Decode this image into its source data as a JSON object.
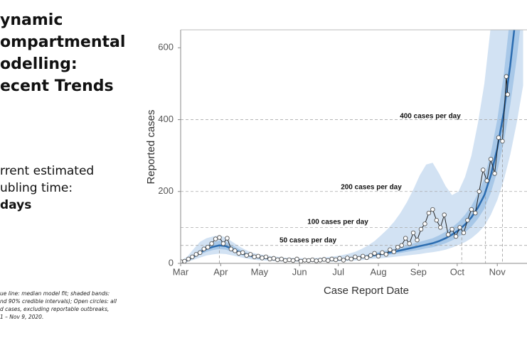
{
  "slide": {
    "title_lines": [
      "ynamic",
      "ompartmental",
      "odelling:",
      "ecent Trends"
    ],
    "body_lines": [
      "rrent estimated",
      "ubling time:"
    ],
    "body_bold": "days",
    "footnote_lines": [
      "ue line: median model fit; shaded bands:",
      "nd 90% credible intervals); Open circles: all",
      "d cases, excluding reportable outbreaks,",
      "1 – Nov 9, 2020."
    ]
  },
  "chart_data": {
    "type": "line",
    "x_label": "Case Report Date",
    "y_label": "Reported cases",
    "xlim": [
      0,
      268
    ],
    "xticks": [
      {
        "value": 0,
        "label": "Mar"
      },
      {
        "value": 31,
        "label": "Apr"
      },
      {
        "value": 61,
        "label": "May"
      },
      {
        "value": 92,
        "label": "Jun"
      },
      {
        "value": 122,
        "label": "Jul"
      },
      {
        "value": 153,
        "label": "Aug"
      },
      {
        "value": 184,
        "label": "Sep"
      },
      {
        "value": 214,
        "label": "Oct"
      },
      {
        "value": 245,
        "label": "Nov"
      }
    ],
    "ylim": [
      0,
      650
    ],
    "yticks": [
      0,
      200,
      400,
      600
    ],
    "series": [
      {
        "color": "#222222",
        "x": [
          0,
          3,
          6,
          9,
          12,
          15,
          18,
          21,
          24,
          27,
          30,
          33,
          36,
          39,
          42,
          45,
          48,
          51,
          54,
          57,
          60,
          63,
          66,
          69,
          72,
          75,
          78,
          81,
          84,
          87,
          90,
          93,
          96,
          99,
          102,
          105,
          108,
          111,
          114,
          117,
          120,
          123,
          126,
          129,
          132,
          135,
          138,
          141,
          144,
          147,
          150,
          153,
          156,
          159,
          162,
          165,
          168,
          171,
          174,
          177,
          180,
          183,
          186,
          189,
          192,
          195,
          198,
          201,
          204,
          207,
          210,
          213,
          216,
          219,
          222,
          225,
          228,
          231,
          234,
          237,
          240,
          243,
          246,
          249,
          252,
          253
        ],
        "values": [
          5,
          6,
          12,
          18,
          25,
          30,
          40,
          45,
          55,
          68,
          72,
          55,
          70,
          40,
          35,
          28,
          30,
          22,
          25,
          18,
          20,
          15,
          18,
          12,
          14,
          10,
          12,
          8,
          10,
          8,
          12,
          6,
          9,
          8,
          10,
          7,
          9,
          11,
          8,
          12,
          10,
          14,
          9,
          15,
          12,
          18,
          14,
          20,
          16,
          22,
          28,
          20,
          30,
          25,
          38,
          32,
          45,
          50,
          70,
          55,
          85,
          65,
          95,
          110,
          140,
          150,
          120,
          100,
          135,
          80,
          95,
          75,
          100,
          85,
          120,
          150,
          140,
          200,
          260,
          230,
          290,
          250,
          350,
          340,
          520,
          470
        ]
      }
    ],
    "model": {
      "color": "#2b6cb0",
      "x": [
        0,
        5,
        10,
        15,
        20,
        25,
        30,
        35,
        40,
        45,
        50,
        55,
        60,
        65,
        70,
        75,
        80,
        85,
        90,
        95,
        100,
        105,
        110,
        115,
        120,
        125,
        130,
        135,
        140,
        145,
        150,
        155,
        160,
        165,
        170,
        175,
        180,
        185,
        190,
        195,
        200,
        205,
        210,
        215,
        220,
        225,
        230,
        235,
        240,
        245,
        250,
        255,
        260,
        265
      ],
      "median": [
        3,
        8,
        18,
        30,
        40,
        46,
        50,
        48,
        40,
        32,
        25,
        20,
        17,
        15,
        13,
        11,
        10,
        9,
        9,
        8,
        8,
        8,
        9,
        9,
        10,
        11,
        13,
        15,
        17,
        20,
        23,
        26,
        29,
        32,
        36,
        40,
        44,
        48,
        52,
        56,
        62,
        70,
        80,
        92,
        108,
        128,
        155,
        190,
        245,
        320,
        420,
        550,
        710,
        900
      ],
      "bands": [
        {
          "color": "#d2e2f3",
          "lower": [
            1,
            4,
            10,
            16,
            22,
            25,
            27,
            26,
            22,
            18,
            14,
            11,
            9,
            8,
            7,
            6,
            5,
            5,
            5,
            4,
            4,
            4,
            5,
            5,
            5,
            6,
            7,
            8,
            9,
            11,
            13,
            14,
            16,
            18,
            20,
            22,
            24,
            26,
            29,
            31,
            34,
            38,
            44,
            51,
            59,
            70,
            85,
            104,
            135,
            176,
            231,
            302,
            390,
            495
          ],
          "upper": [
            8,
            18,
            40,
            60,
            70,
            75,
            78,
            72,
            60,
            48,
            38,
            30,
            26,
            23,
            20,
            18,
            16,
            15,
            15,
            14,
            14,
            15,
            16,
            18,
            20,
            23,
            27,
            32,
            40,
            50,
            62,
            78,
            95,
            115,
            140,
            170,
            205,
            245,
            275,
            280,
            250,
            215,
            190,
            200,
            240,
            300,
            390,
            500,
            660,
            850,
            1100,
            1400,
            1800,
            2300
          ]
        },
        {
          "color": "#a8c8e8",
          "lower": [
            2,
            6,
            14,
            24,
            32,
            37,
            40,
            38,
            32,
            25,
            20,
            16,
            13,
            12,
            10,
            9,
            8,
            7,
            7,
            6,
            6,
            6,
            7,
            7,
            8,
            9,
            10,
            12,
            14,
            16,
            18,
            21,
            23,
            26,
            29,
            32,
            35,
            38,
            42,
            45,
            50,
            56,
            64,
            74,
            86,
            102,
            124,
            152,
            196,
            256,
            336,
            440,
            568,
            720
          ],
          "upper": [
            4,
            10,
            23,
            38,
            50,
            58,
            63,
            60,
            50,
            40,
            31,
            25,
            21,
            19,
            16,
            14,
            13,
            11,
            11,
            10,
            10,
            10,
            11,
            11,
            13,
            14,
            16,
            19,
            21,
            25,
            29,
            33,
            36,
            40,
            45,
            50,
            55,
            60,
            65,
            70,
            78,
            88,
            100,
            115,
            135,
            160,
            194,
            238,
            306,
            400,
            525,
            690,
            890,
            1120
          ]
        }
      ]
    },
    "thresholds": [
      {
        "value": 400,
        "label": "400 cases per day"
      },
      {
        "value": 200,
        "label": "200 cases per day"
      },
      {
        "value": 100,
        "label": "100 cases per day"
      },
      {
        "value": 50,
        "label": "50 cases per day"
      }
    ]
  }
}
